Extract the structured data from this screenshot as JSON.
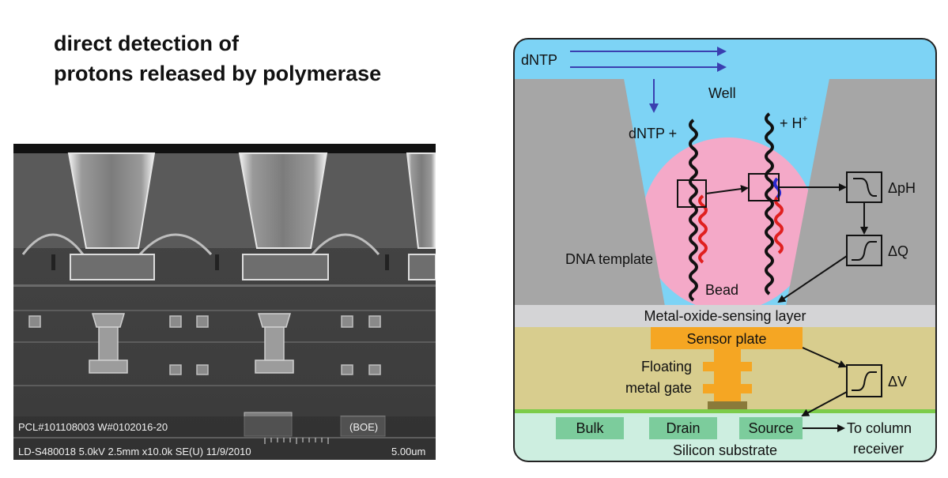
{
  "title": {
    "line1": "direct detection of",
    "line2": "protons released by polymerase"
  },
  "sem_image": {
    "caption_line1_left": "PCL#101108003  W#0102016-20",
    "caption_line1_right": "(BOE)",
    "caption_line2_left": "LD-S480018 5.0kV 2.5mm x10.0k SE(U) 11/9/2010",
    "caption_line2_right": "5.00um"
  },
  "diagram": {
    "dntp_flow": "dNTP",
    "well": "Well",
    "dntp_plus": "dNTP +",
    "h_plus": "+ H",
    "h_plus_sup": "+",
    "delta_ph": "ΔpH",
    "delta_q": "ΔQ",
    "dna_template": "DNA template",
    "bead": "Bead",
    "metal_oxide_layer": "Metal-oxide-sensing layer",
    "sensor_plate": "Sensor plate",
    "floating_line1": "Floating",
    "floating_line2": "metal gate",
    "delta_v": "ΔV",
    "bulk": "Bulk",
    "drain": "Drain",
    "source": "Source",
    "to_column_line1": "To column",
    "to_column_line2": "receiver",
    "silicon_substrate": "Silicon substrate",
    "colors": {
      "solution": "#7dd3f5",
      "well_wall": "#a6a6a6",
      "bead": "#f4a9c8",
      "sensing_layer": "#d4d4d6",
      "gate_region": "#d8cd8e",
      "sensor_plate": "#f5a623",
      "substrate": "#cdeee0",
      "diffusion": "#7ccc9c",
      "arrow_blue": "#3a3fb0"
    }
  }
}
